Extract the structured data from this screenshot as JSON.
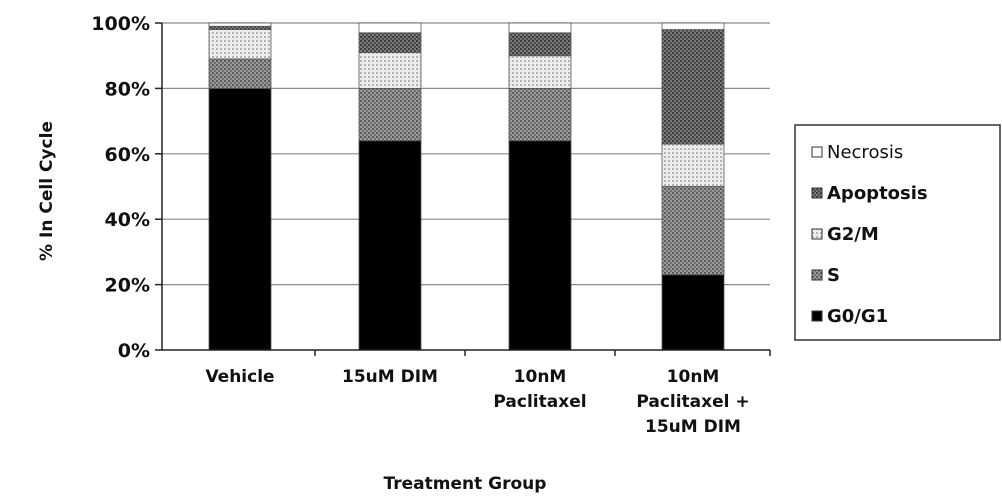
{
  "chart_data": {
    "type": "bar",
    "stacked": true,
    "percent_stacked": true,
    "xlabel": "Treatment Group",
    "ylabel": "% In Cell Cycle",
    "ylim": [
      0,
      100
    ],
    "yticks": [
      0,
      20,
      40,
      60,
      80,
      100
    ],
    "ytick_labels": [
      "0%",
      "20%",
      "40%",
      "60%",
      "80%",
      "100%"
    ],
    "grid": "horizontal",
    "legend_position": "right",
    "categories": [
      [
        "Vehicle"
      ],
      [
        "15uM DIM"
      ],
      [
        "10nM",
        "Paclitaxel"
      ],
      [
        "10nM",
        "Paclitaxel +",
        "15uM DIM"
      ]
    ],
    "series": [
      {
        "name": "G0/G1",
        "pattern": "solid-black",
        "color": "#000000",
        "values": [
          80,
          64,
          64,
          23
        ]
      },
      {
        "name": "S",
        "pattern": "dense-dots",
        "color": "#777777",
        "values": [
          9,
          16,
          16,
          27
        ]
      },
      {
        "name": "G2/M",
        "pattern": "light-dots",
        "color": "#c8c8c8",
        "values": [
          9,
          11,
          10,
          13
        ]
      },
      {
        "name": "Apoptosis",
        "pattern": "dark-dots",
        "color": "#555555",
        "values": [
          1,
          6,
          7,
          35
        ]
      },
      {
        "name": "Necrosis",
        "pattern": "white",
        "color": "#ffffff",
        "values": [
          1,
          3,
          3,
          2
        ]
      }
    ],
    "legend_order": [
      "Necrosis",
      "Apoptosis",
      "G2/M",
      "S",
      "G0/G1"
    ],
    "legend_bold": [
      "Apoptosis",
      "G2/M",
      "S",
      "G0/G1"
    ]
  }
}
